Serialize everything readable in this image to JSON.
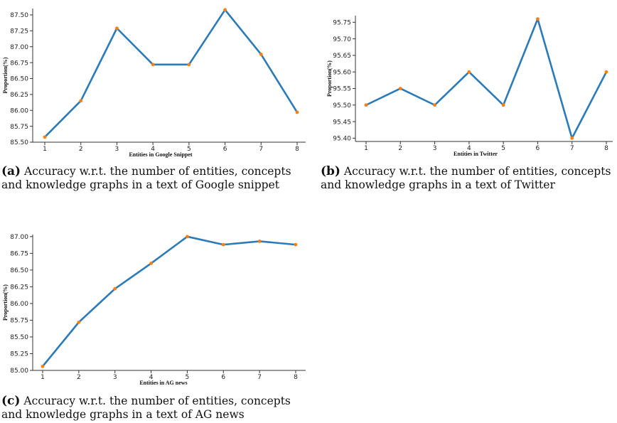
{
  "chart_data": [
    {
      "type": "line",
      "xlabel": "Entities in Google Snippet",
      "ylabel": "Proportion(%)",
      "x": [
        1,
        2,
        3,
        4,
        5,
        6,
        7,
        8
      ],
      "series": [
        {
          "values": [
            85.58,
            86.15,
            87.29,
            86.72,
            86.72,
            87.58,
            86.88,
            85.97
          ]
        }
      ],
      "yticks": [
        "85.50",
        "85.75",
        "86.00",
        "86.25",
        "86.50",
        "86.75",
        "87.00",
        "87.25",
        "87.50"
      ],
      "xticks": [
        "1",
        "2",
        "3",
        "4",
        "5",
        "6",
        "7",
        "8"
      ],
      "ylim": [
        85.5,
        87.6
      ],
      "grid": false,
      "line_color": "#2b7bb9",
      "marker_color": "#ff7f0e",
      "caption_tag": "(a)",
      "caption_text": "Accuracy w.r.t. the number of entities, concepts and knowledge graphs in a text of Google snippet"
    },
    {
      "type": "line",
      "xlabel": "Entities in Twitter",
      "ylabel": "Proportion(%)",
      "x": [
        1,
        2,
        3,
        4,
        5,
        6,
        7,
        8
      ],
      "series": [
        {
          "values": [
            95.5,
            95.55,
            95.5,
            95.6,
            95.5,
            95.76,
            95.4,
            95.6
          ]
        }
      ],
      "yticks": [
        "95.40",
        "95.45",
        "95.50",
        "95.55",
        "95.60",
        "95.65",
        "95.70",
        "95.75"
      ],
      "xticks": [
        "1",
        "2",
        "3",
        "4",
        "5",
        "6",
        "7",
        "8"
      ],
      "ylim": [
        95.39,
        95.77
      ],
      "grid": false,
      "line_color": "#2b7bb9",
      "marker_color": "#ff7f0e",
      "caption_tag": "(b)",
      "caption_text": "Accuracy w.r.t. the number of entities, concepts and knowledge graphs in a text of Twitter"
    },
    {
      "type": "line",
      "xlabel": "Entities in AG news",
      "ylabel": "Proportion(%)",
      "x": [
        1,
        2,
        3,
        4,
        5,
        6,
        7,
        8
      ],
      "series": [
        {
          "values": [
            85.06,
            85.72,
            86.22,
            86.6,
            87.0,
            86.88,
            86.93,
            86.88
          ]
        }
      ],
      "yticks": [
        "85.00",
        "85.25",
        "85.50",
        "85.75",
        "86.00",
        "86.25",
        "86.50",
        "86.75",
        "87.00"
      ],
      "xticks": [
        "1",
        "2",
        "3",
        "4",
        "5",
        "6",
        "7",
        "8"
      ],
      "ylim": [
        85.0,
        87.03
      ],
      "grid": false,
      "line_color": "#2b7bb9",
      "marker_color": "#ff7f0e",
      "caption_tag": "(c)",
      "caption_text": "Accuracy w.r.t. the number of entities, concepts and knowledge graphs in a text of AG news"
    }
  ]
}
